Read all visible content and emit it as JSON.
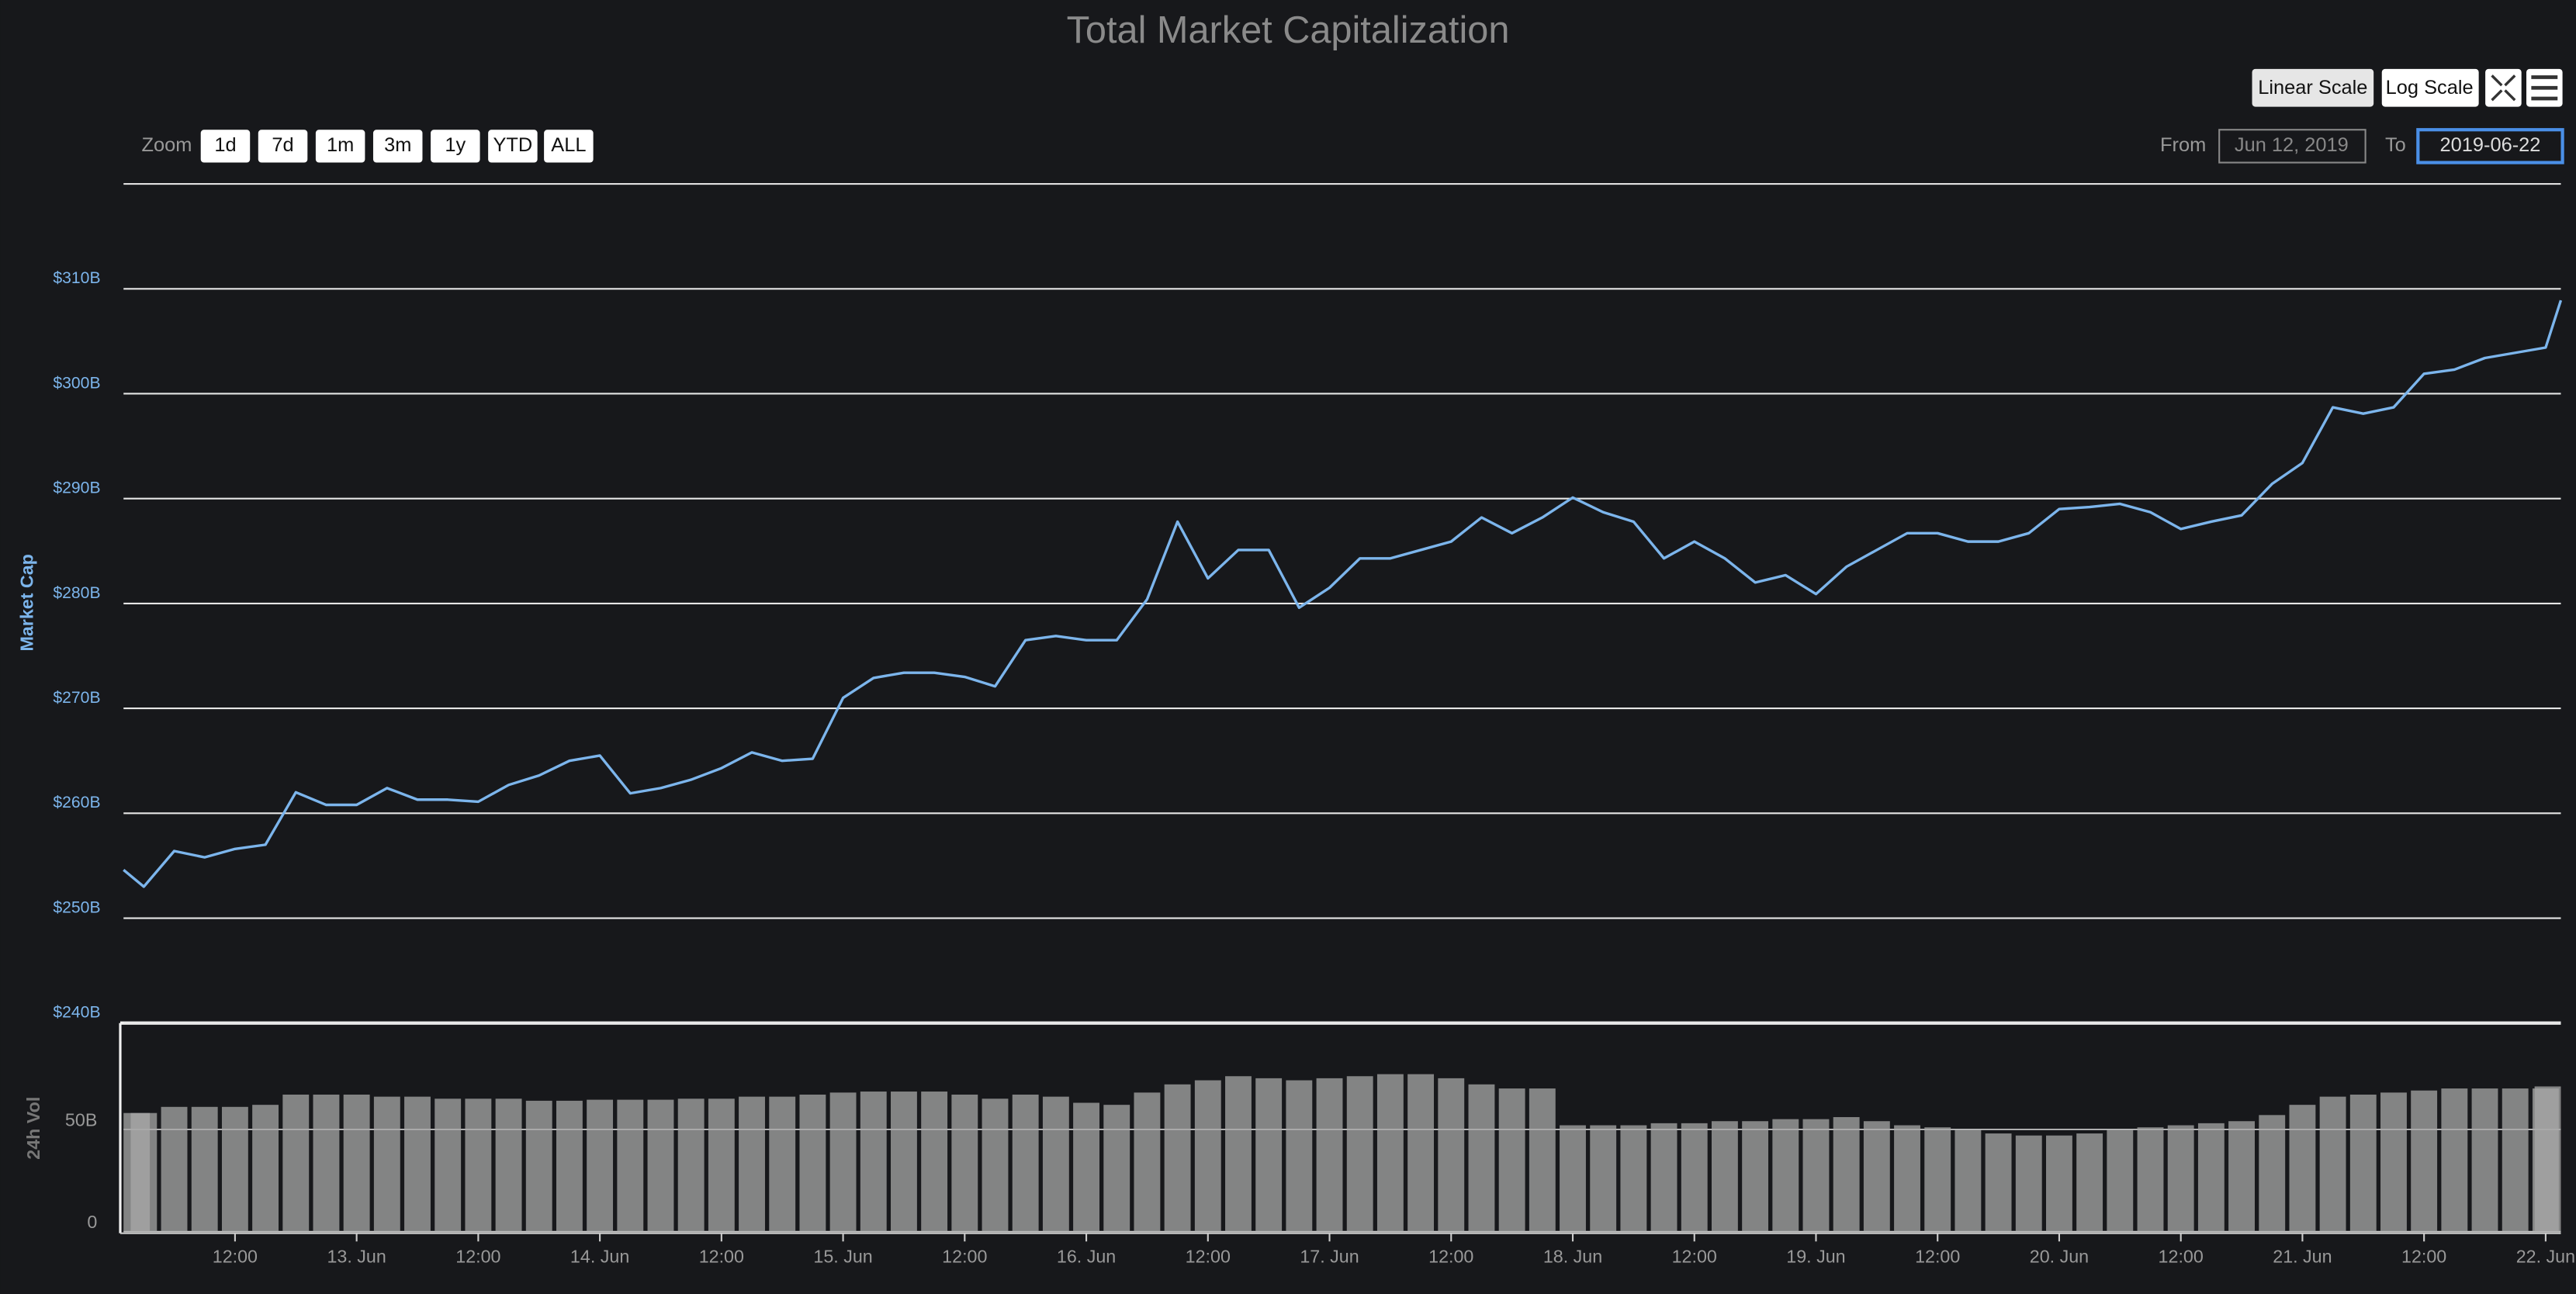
{
  "toolbar": {
    "zoom_label": "Zoom",
    "zoom_buttons": [
      "1d",
      "7d",
      "1m",
      "3m",
      "1y",
      "YTD",
      "ALL"
    ],
    "from_label": "From",
    "from_value": "Jun 12, 2019",
    "to_label": "To",
    "to_value": "2019-06-22",
    "scale_buttons": [
      "Linear Scale",
      "Log Scale"
    ]
  },
  "chart_data": [
    {
      "type": "line",
      "title": "Total Market Capitalization",
      "ylabel": "Market Cap",
      "x": [
        "2019-06-12T01:00",
        "2019-06-12T03:00",
        "2019-06-12T06:00",
        "2019-06-12T09:00",
        "2019-06-12T12:00",
        "2019-06-12T15:00",
        "2019-06-12T18:00",
        "2019-06-12T21:00",
        "2019-06-13T00:00",
        "2019-06-13T03:00",
        "2019-06-13T06:00",
        "2019-06-13T09:00",
        "2019-06-13T12:00",
        "2019-06-13T15:00",
        "2019-06-13T18:00",
        "2019-06-13T21:00",
        "2019-06-14T00:00",
        "2019-06-14T03:00",
        "2019-06-14T06:00",
        "2019-06-14T09:00",
        "2019-06-14T12:00",
        "2019-06-14T15:00",
        "2019-06-14T18:00",
        "2019-06-14T21:00",
        "2019-06-15T00:00",
        "2019-06-15T03:00",
        "2019-06-15T06:00",
        "2019-06-15T09:00",
        "2019-06-15T12:00",
        "2019-06-15T15:00",
        "2019-06-15T18:00",
        "2019-06-15T21:00",
        "2019-06-16T00:00",
        "2019-06-16T03:00",
        "2019-06-16T06:00",
        "2019-06-16T09:00",
        "2019-06-16T12:00",
        "2019-06-16T15:00",
        "2019-06-16T18:00",
        "2019-06-16T21:00",
        "2019-06-17T00:00",
        "2019-06-17T03:00",
        "2019-06-17T06:00",
        "2019-06-17T09:00",
        "2019-06-17T12:00",
        "2019-06-17T15:00",
        "2019-06-17T18:00",
        "2019-06-17T21:00",
        "2019-06-18T00:00",
        "2019-06-18T03:00",
        "2019-06-18T06:00",
        "2019-06-18T09:00",
        "2019-06-18T12:00",
        "2019-06-18T15:00",
        "2019-06-18T18:00",
        "2019-06-18T21:00",
        "2019-06-19T00:00",
        "2019-06-19T03:00",
        "2019-06-19T06:00",
        "2019-06-19T09:00",
        "2019-06-19T12:00",
        "2019-06-19T15:00",
        "2019-06-19T18:00",
        "2019-06-19T21:00",
        "2019-06-20T00:00",
        "2019-06-20T03:00",
        "2019-06-20T06:00",
        "2019-06-20T09:00",
        "2019-06-20T12:00",
        "2019-06-20T15:00",
        "2019-06-20T18:00",
        "2019-06-20T21:00",
        "2019-06-21T00:00",
        "2019-06-21T03:00",
        "2019-06-21T06:00",
        "2019-06-21T09:00",
        "2019-06-21T12:00",
        "2019-06-21T15:00",
        "2019-06-21T18:00",
        "2019-06-21T21:00",
        "2019-06-22T00:00",
        "2019-06-22T01:30"
      ],
      "series": [
        {
          "name": "Market Cap",
          "color": "#7cb5ec",
          "values": [
            254.6,
            253,
            256.4,
            255.8,
            256.6,
            257,
            262,
            260.8,
            260.8,
            262.4,
            261.3,
            261.3,
            261.1,
            262.7,
            263.6,
            265,
            265.5,
            261.9,
            262.4,
            263.2,
            264.3,
            265.8,
            265,
            265.2,
            271,
            272.9,
            273.4,
            273.4,
            273,
            272.1,
            276.5,
            276.9,
            276.5,
            276.5,
            280.4,
            287.8,
            282.4,
            285.1,
            285.1,
            279.6,
            281.5,
            284.3,
            284.3,
            285.1,
            285.9,
            288.2,
            286.7,
            288.2,
            290.1,
            288.7,
            287.8,
            284.3,
            285.9,
            284.3,
            282,
            282.7,
            280.9,
            283.5,
            285.1,
            286.7,
            286.7,
            285.9,
            285.9,
            286.7,
            289,
            289.2,
            289.5,
            288.7,
            287.1,
            287.8,
            288.4,
            291.4,
            293.4,
            298.7,
            298.1,
            298.7,
            301.9,
            302.3,
            303.4,
            303.9,
            304.4,
            308.9
          ]
        }
      ],
      "xlim": [
        "2019-06-12T01:00",
        "2019-06-22T01:30"
      ],
      "ylim": [
        240,
        320
      ],
      "yticks": [
        {
          "value": 240,
          "label": "$240B"
        },
        {
          "value": 250,
          "label": "$250B"
        },
        {
          "value": 260,
          "label": "$260B"
        },
        {
          "value": 270,
          "label": "$270B"
        },
        {
          "value": 280,
          "label": "$280B"
        },
        {
          "value": 290,
          "label": "$290B"
        },
        {
          "value": 300,
          "label": "$300B"
        },
        {
          "value": 310,
          "label": "$310B"
        }
      ],
      "grid": true
    },
    {
      "type": "bar",
      "ylabel": "24h Vol",
      "x": [
        "2019-06-12T01:00",
        "2019-06-12T03:00",
        "2019-06-12T06:00",
        "2019-06-12T09:00",
        "2019-06-12T12:00",
        "2019-06-12T15:00",
        "2019-06-12T18:00",
        "2019-06-12T21:00",
        "2019-06-13T00:00",
        "2019-06-13T03:00",
        "2019-06-13T06:00",
        "2019-06-13T09:00",
        "2019-06-13T12:00",
        "2019-06-13T15:00",
        "2019-06-13T18:00",
        "2019-06-13T21:00",
        "2019-06-14T00:00",
        "2019-06-14T03:00",
        "2019-06-14T06:00",
        "2019-06-14T09:00",
        "2019-06-14T12:00",
        "2019-06-14T15:00",
        "2019-06-14T18:00",
        "2019-06-14T21:00",
        "2019-06-15T00:00",
        "2019-06-15T03:00",
        "2019-06-15T06:00",
        "2019-06-15T09:00",
        "2019-06-15T12:00",
        "2019-06-15T15:00",
        "2019-06-15T18:00",
        "2019-06-15T21:00",
        "2019-06-16T00:00",
        "2019-06-16T03:00",
        "2019-06-16T06:00",
        "2019-06-16T09:00",
        "2019-06-16T12:00",
        "2019-06-16T15:00",
        "2019-06-16T18:00",
        "2019-06-16T21:00",
        "2019-06-17T00:00",
        "2019-06-17T03:00",
        "2019-06-17T06:00",
        "2019-06-17T09:00",
        "2019-06-17T12:00",
        "2019-06-17T15:00",
        "2019-06-17T18:00",
        "2019-06-17T21:00",
        "2019-06-18T00:00",
        "2019-06-18T03:00",
        "2019-06-18T06:00",
        "2019-06-18T09:00",
        "2019-06-18T12:00",
        "2019-06-18T15:00",
        "2019-06-18T18:00",
        "2019-06-18T21:00",
        "2019-06-19T00:00",
        "2019-06-19T03:00",
        "2019-06-19T06:00",
        "2019-06-19T09:00",
        "2019-06-19T12:00",
        "2019-06-19T15:00",
        "2019-06-19T18:00",
        "2019-06-19T21:00",
        "2019-06-20T00:00",
        "2019-06-20T03:00",
        "2019-06-20T06:00",
        "2019-06-20T09:00",
        "2019-06-20T12:00",
        "2019-06-20T15:00",
        "2019-06-20T18:00",
        "2019-06-20T21:00",
        "2019-06-21T00:00",
        "2019-06-21T03:00",
        "2019-06-21T06:00",
        "2019-06-21T09:00",
        "2019-06-21T12:00",
        "2019-06-21T15:00",
        "2019-06-21T18:00",
        "2019-06-21T21:00",
        "2019-06-22T00:00",
        "2019-06-22T01:30"
      ],
      "series": [
        {
          "name": "24h Vol",
          "color": "#a8a8a8",
          "values": [
            58,
            58,
            61,
            61,
            61,
            62,
            67,
            67,
            67,
            66,
            66,
            65,
            65,
            65,
            64,
            64,
            64.5,
            64.5,
            64.5,
            65,
            65,
            66,
            66,
            67,
            68,
            68.5,
            68.5,
            68.5,
            67,
            65,
            67,
            66,
            63,
            62,
            68,
            72,
            74,
            76,
            75,
            74,
            75,
            76,
            77,
            77,
            75,
            72,
            70,
            70,
            52,
            52,
            52,
            53,
            53,
            54,
            54,
            55,
            55,
            56,
            54,
            52,
            51,
            50,
            48,
            47,
            47,
            48,
            50,
            51,
            52,
            53,
            54,
            57,
            62,
            66,
            67,
            68,
            69,
            70,
            70,
            70,
            70,
            71
          ]
        }
      ],
      "xlim": [
        "2019-06-12T01:00",
        "2019-06-22T01:30"
      ],
      "ylim": [
        0,
        102
      ],
      "yticks": [
        0,
        {
          "value": 50,
          "label": "50B"
        }
      ],
      "xticks": [
        {
          "value": "2019-06-12T12:00",
          "label": "12:00"
        },
        {
          "value": "2019-06-13T00:00",
          "label": "13. Jun"
        },
        {
          "value": "2019-06-13T12:00",
          "label": "12:00"
        },
        {
          "value": "2019-06-14T00:00",
          "label": "14. Jun"
        },
        {
          "value": "2019-06-14T12:00",
          "label": "12:00"
        },
        {
          "value": "2019-06-15T00:00",
          "label": "15. Jun"
        },
        {
          "value": "2019-06-15T12:00",
          "label": "12:00"
        },
        {
          "value": "2019-06-16T00:00",
          "label": "16. Jun"
        },
        {
          "value": "2019-06-16T12:00",
          "label": "12:00"
        },
        {
          "value": "2019-06-17T00:00",
          "label": "17. Jun"
        },
        {
          "value": "2019-06-17T12:00",
          "label": "12:00"
        },
        {
          "value": "2019-06-18T00:00",
          "label": "18. Jun"
        },
        {
          "value": "2019-06-18T12:00",
          "label": "12:00"
        },
        {
          "value": "2019-06-19T00:00",
          "label": "19. Jun"
        },
        {
          "value": "2019-06-19T12:00",
          "label": "12:00"
        },
        {
          "value": "2019-06-20T00:00",
          "label": "20. Jun"
        },
        {
          "value": "2019-06-20T12:00",
          "label": "12:00"
        },
        {
          "value": "2019-06-21T00:00",
          "label": "21. Jun"
        },
        {
          "value": "2019-06-21T12:00",
          "label": "12:00"
        },
        {
          "value": "2019-06-22T00:00",
          "label": "22. Jun"
        }
      ],
      "grid": true
    }
  ]
}
